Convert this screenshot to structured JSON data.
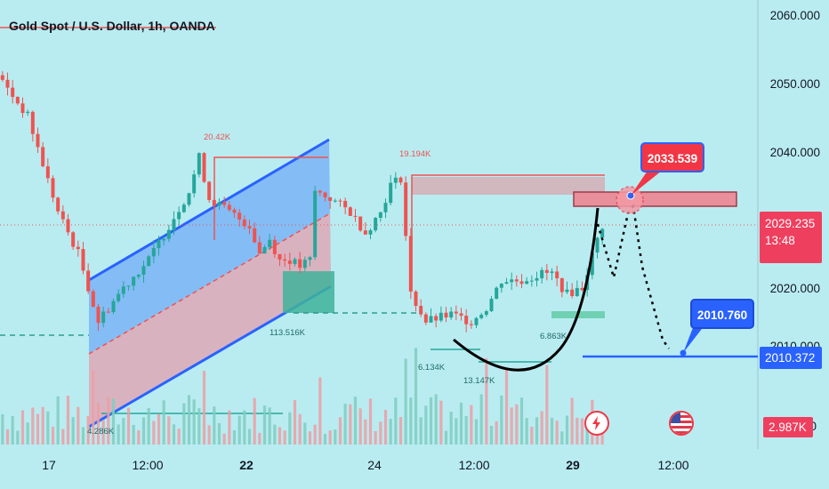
{
  "header": {
    "title": "Gold Spot / U.S. Dollar, 1h, OANDA"
  },
  "price_axis": {
    "labels": [
      "2060.000",
      "2050.000",
      "2040.000",
      "2020.000",
      "2010.000",
      "0"
    ]
  },
  "time_axis": {
    "labels": [
      {
        "text": "17",
        "bold": false
      },
      {
        "text": "12:00",
        "bold": false
      },
      {
        "text": "22",
        "bold": true
      },
      {
        "text": "24",
        "bold": false
      },
      {
        "text": "12:00",
        "bold": false
      },
      {
        "text": "29",
        "bold": true
      },
      {
        "text": "12:00",
        "bold": false
      }
    ]
  },
  "current_price": {
    "value": "2029.235",
    "countdown": "13:48"
  },
  "target_line": {
    "value": "2010.372"
  },
  "volume": {
    "value": "2.987K"
  },
  "callouts": {
    "resistance": "2033.539",
    "target": "2010.760"
  },
  "volume_annotations": {
    "a": "20.42K",
    "b": "19.194K",
    "c": "113.516K",
    "d": "6.134K",
    "e": "13.147K",
    "f": "6.863K",
    "g": "4.286K"
  },
  "colors": {
    "background": "#b9ecf1",
    "bull": "#26a69a",
    "bear": "#ef5350",
    "channel": "#2962ff",
    "price_tag": "#ef3f5e",
    "target_tag": "#2962ff",
    "callout_red": "#f23645"
  },
  "icons": {
    "event_1": "lightning-icon",
    "event_2": "us-flag-icon"
  },
  "chart_data": {
    "type": "candlestick",
    "title": "Gold Spot / U.S. Dollar, 1h, OANDA",
    "symbol": "XAUUSD",
    "timeframe": "1h",
    "ylim": [
      2000,
      2062
    ],
    "y_ticks": [
      2060,
      2050,
      2040,
      2020,
      2010
    ],
    "x_ticks": [
      "17",
      "12:00",
      "22",
      "24",
      "12:00",
      "29",
      "12:00"
    ],
    "current_price": 2029.235,
    "target_price": 2010.372,
    "resistance_price": 2033.539,
    "target_callout": 2010.76,
    "path": [
      [
        0,
        2051
      ],
      [
        6,
        2045
      ],
      [
        12,
        2031
      ],
      [
        16,
        2025
      ],
      [
        20,
        2015
      ],
      [
        25,
        2020
      ],
      [
        30,
        2024
      ],
      [
        34,
        2029
      ],
      [
        38,
        2034
      ],
      [
        40,
        2039
      ],
      [
        42,
        2033
      ],
      [
        46,
        2031
      ],
      [
        50,
        2029
      ],
      [
        52,
        2025
      ],
      [
        54,
        2027
      ],
      [
        56,
        2024
      ],
      [
        58,
        2024
      ],
      [
        60,
        2023
      ],
      [
        62,
        2024
      ],
      [
        63,
        2034
      ],
      [
        66,
        2033
      ],
      [
        70,
        2031
      ],
      [
        73,
        2028
      ],
      [
        76,
        2031
      ],
      [
        78,
        2035
      ],
      [
        80,
        2036
      ],
      [
        82,
        2019
      ],
      [
        85,
        2015
      ],
      [
        90,
        2016
      ],
      [
        94,
        2015
      ],
      [
        97,
        2017
      ],
      [
        100,
        2021
      ],
      [
        104,
        2021
      ],
      [
        108,
        2022
      ],
      [
        110,
        2022
      ],
      [
        113,
        2019
      ],
      [
        116,
        2020
      ],
      [
        119,
        2027
      ],
      [
        120,
        2029
      ]
    ],
    "volume_peaks": [
      "20.42K",
      "19.194K",
      "113.516K",
      "6.134K",
      "13.147K",
      "6.863K",
      "4.286K"
    ]
  }
}
